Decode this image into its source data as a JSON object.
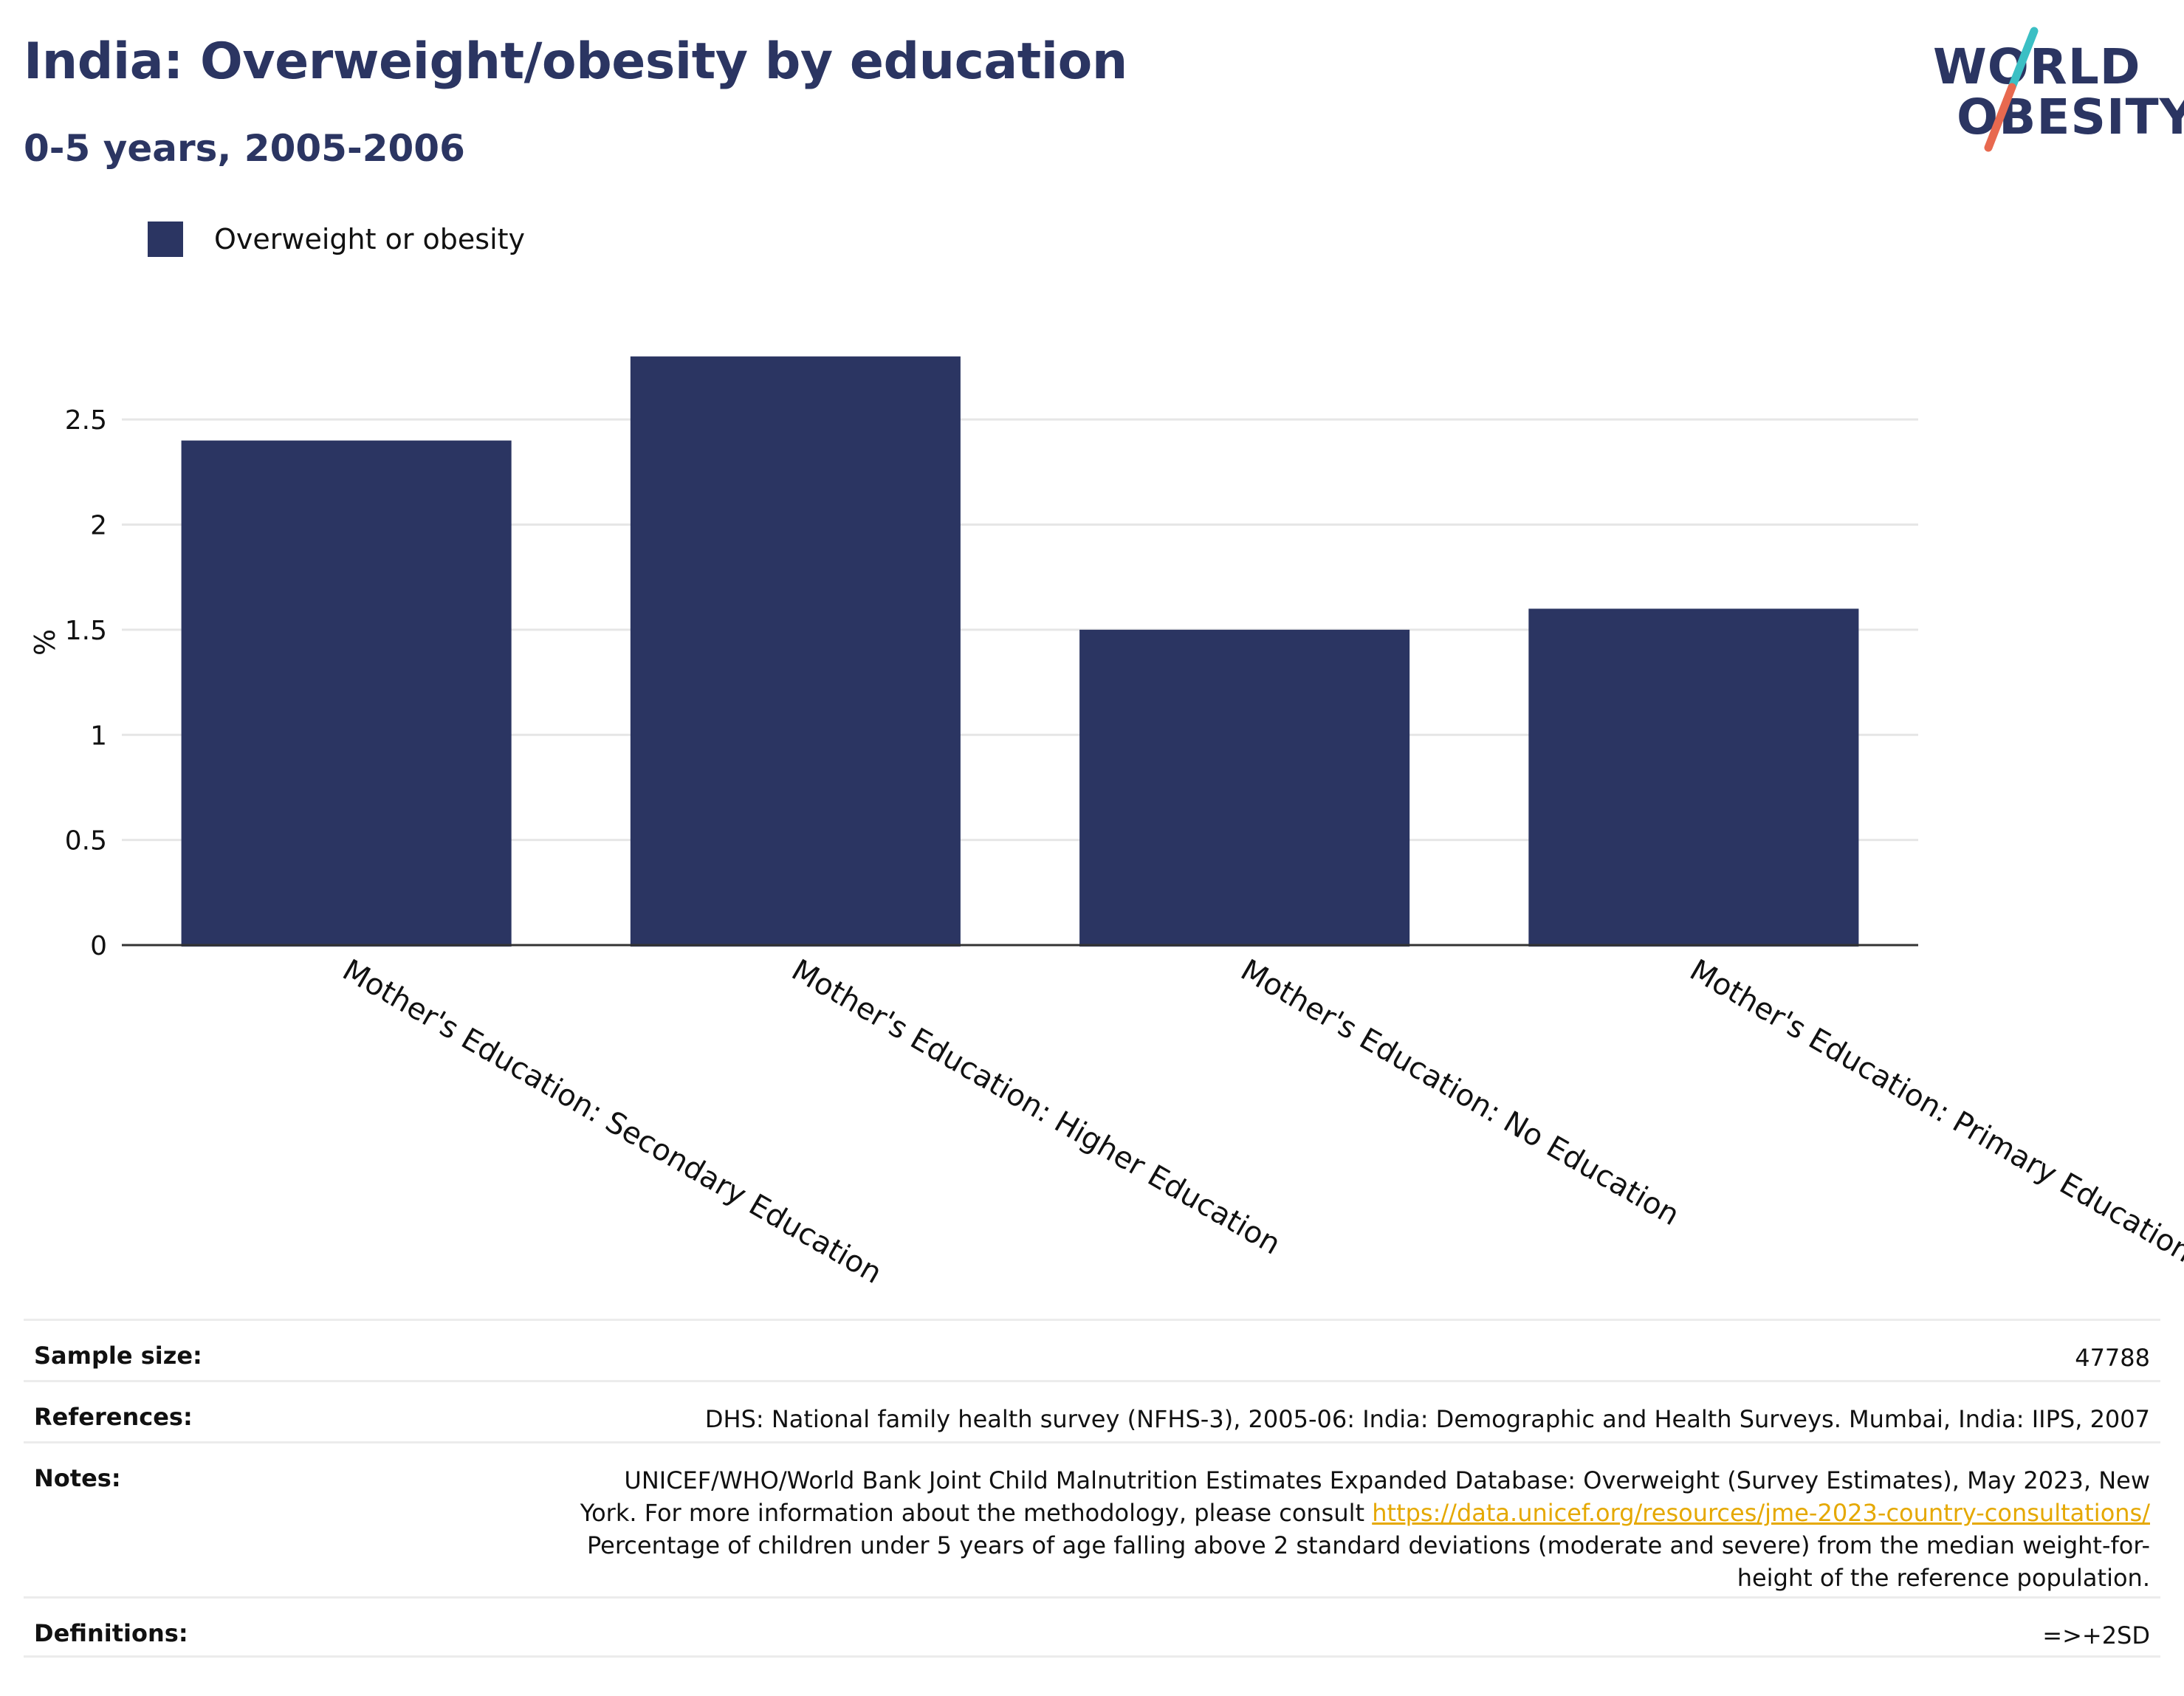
{
  "header": {
    "title": "India: Overweight/obesity by education",
    "subtitle": "0-5 years, 2005-2006"
  },
  "logo": {
    "line1": "WORLD",
    "line2": "OBESITY",
    "accent_colors": [
      "#3bbfc4",
      "#e8694f"
    ]
  },
  "legend": {
    "label": "Overweight or obesity",
    "color": "#2b3562"
  },
  "chart_data": {
    "type": "bar",
    "categories": [
      "Mother's Education: Secondary Education",
      "Mother's Education: Higher Education",
      "Mother's Education: No Education",
      "Mother's Education: Primary Education"
    ],
    "series": [
      {
        "name": "Overweight or obesity",
        "values": [
          2.4,
          2.8,
          1.5,
          1.6
        ],
        "color": "#2b3562"
      }
    ],
    "ylabel": "%",
    "yticks": [
      "0",
      "0.5",
      "1",
      "1.5",
      "2",
      "2.5"
    ],
    "ylim": [
      0,
      2.95
    ],
    "grid": true,
    "legend_position": "top-left"
  },
  "table": {
    "sample_size": {
      "label": "Sample size:",
      "value": "47788"
    },
    "references": {
      "label": "References:",
      "value": "DHS: National family health survey (NFHS-3), 2005-06: India: Demographic and Health Surveys. Mumbai, India: IIPS, 2007"
    },
    "notes": {
      "label": "Notes:",
      "line1": "UNICEF/WHO/World Bank Joint Child Malnutrition Estimates Expanded Database: Overweight (Survey Estimates), May 2023, New",
      "line2_prefix": "York. For more information about the methodology, please consult",
      "link": "https://data.unicef.org/resources/jme-2023-country-consultations/",
      "line3": "Percentage of children under 5 years of age falling above 2 standard deviations (moderate and severe) from the median weight-for-",
      "line4": "height of the reference population."
    },
    "definitions": {
      "label": "Definitions:",
      "value": "=>+2SD"
    }
  }
}
